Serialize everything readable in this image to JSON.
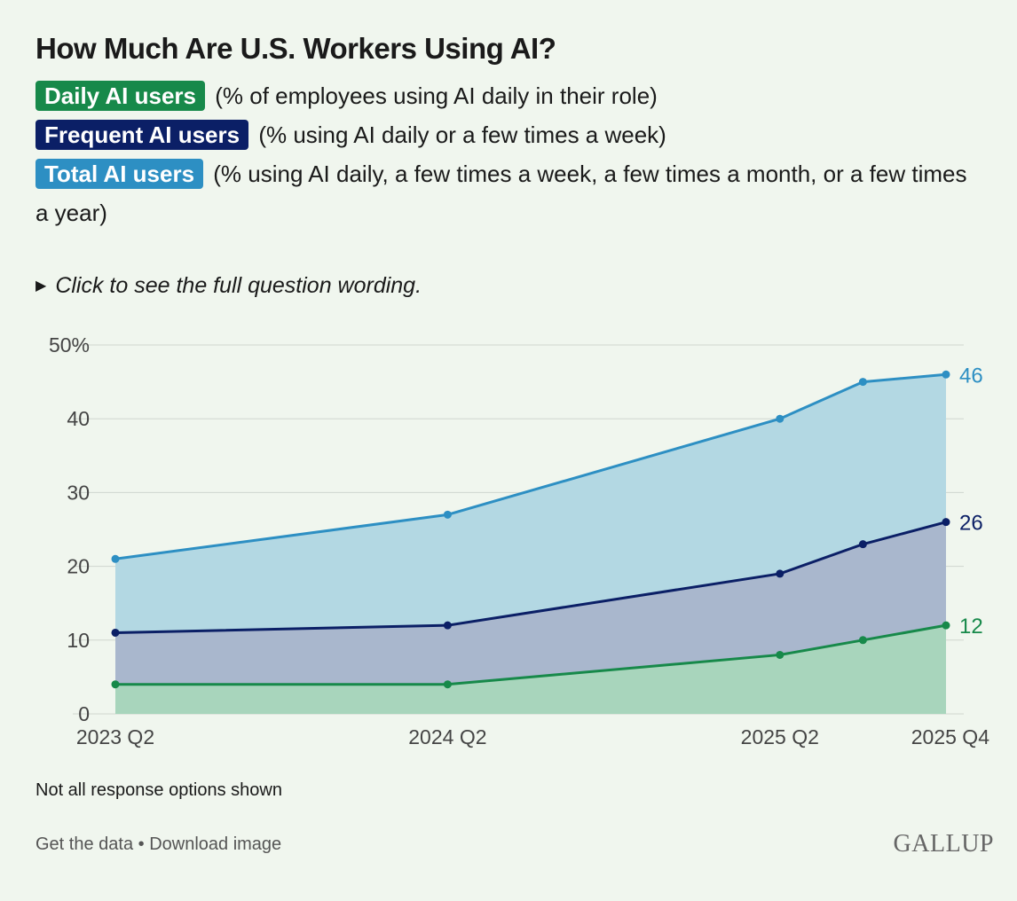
{
  "title": "How Much Are U.S. Workers Using AI?",
  "legend": [
    {
      "label": "Daily AI users",
      "desc": " (% of employees using AI daily in their role)"
    },
    {
      "label": "Frequent AI users",
      "desc": " (% using AI daily or a few times a week)"
    },
    {
      "label": "Total AI users",
      "desc": " (% using AI daily, a few times a week, a few times a month, or a few times a year)"
    }
  ],
  "wording_toggle": "Click to see the full question wording.",
  "note": "Not all response options shown",
  "links": {
    "get_data": "Get the data",
    "separator": " • ",
    "download": "Download image"
  },
  "brand": "GALLUP",
  "colors": {
    "daily": "#17894a",
    "frequent": "#0b1f66",
    "total": "#2d8fc3",
    "total_fill": "#b3d8e3",
    "frequent_fill": "#a9b7cd",
    "daily_fill": "#a8d5bc",
    "grid": "#cfd6cf",
    "axis_text": "#444444"
  },
  "chart_data": {
    "type": "area",
    "title": "How Much Are U.S. Workers Using AI?",
    "x": [
      0,
      4,
      8,
      9,
      10
    ],
    "x_tick_values": [
      0,
      4,
      8,
      10
    ],
    "x_tick_labels": [
      "2023 Q2",
      "2024 Q2",
      "2025 Q2",
      "2025 Q4"
    ],
    "y_ticks": [
      0,
      10,
      20,
      30,
      40,
      50
    ],
    "y_tick_labels": [
      "0",
      "10",
      "20",
      "30",
      "40",
      "50%"
    ],
    "ylim": [
      0,
      50
    ],
    "series": [
      {
        "name": "Total AI users",
        "key": "total",
        "values": [
          21,
          27,
          40,
          45,
          46
        ],
        "end_label": "46"
      },
      {
        "name": "Frequent AI users",
        "key": "frequent",
        "values": [
          11,
          12,
          19,
          23,
          26
        ],
        "end_label": "26"
      },
      {
        "name": "Daily AI users",
        "key": "daily",
        "values": [
          4,
          4,
          8,
          10,
          12
        ],
        "end_label": "12"
      }
    ]
  }
}
